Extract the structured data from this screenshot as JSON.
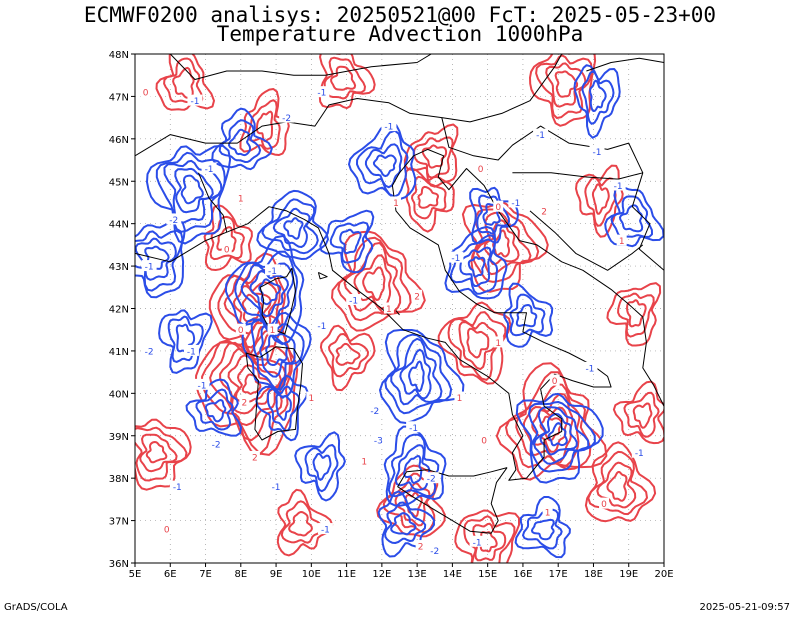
{
  "title_line1": "ECMWF0200 analisys: 20250521@00 FcT: 2025-05-23+00",
  "title_line2": "Temperature Advection 1000hPa",
  "footer_left": "GrADS/COLA",
  "footer_right": "2025-05-21-09:57",
  "colors": {
    "positive": "#e8434a",
    "negative": "#2b4de8",
    "coast": "#000000",
    "grid": "#9a9a9a"
  },
  "map": {
    "lon_range": [
      5,
      20
    ],
    "lat_range": [
      36,
      48
    ],
    "lon_ticks": [
      "5E",
      "6E",
      "7E",
      "8E",
      "9E",
      "10E",
      "11E",
      "12E",
      "13E",
      "14E",
      "15E",
      "16E",
      "17E",
      "18E",
      "19E",
      "20E"
    ],
    "lat_ticks": [
      "36N",
      "37N",
      "38N",
      "39N",
      "40N",
      "41N",
      "42N",
      "43N",
      "44N",
      "45N",
      "46N",
      "47N",
      "48N"
    ],
    "grid": "dotted"
  },
  "contours": {
    "positive": [
      {
        "lon": 8.3,
        "lat": 40.2,
        "n": 7
      },
      {
        "lon": 8.3,
        "lat": 42.0,
        "n": 5
      },
      {
        "lon": 16.8,
        "lat": 39.2,
        "n": 6
      },
      {
        "lon": 11.8,
        "lat": 42.6,
        "n": 5
      },
      {
        "lon": 15.4,
        "lat": 43.5,
        "n": 5
      },
      {
        "lon": 5.6,
        "lat": 38.6,
        "n": 4
      },
      {
        "lon": 17.2,
        "lat": 47.3,
        "n": 4
      },
      {
        "lon": 13.5,
        "lat": 45.6,
        "n": 3
      },
      {
        "lon": 8.7,
        "lat": 46.3,
        "n": 3
      },
      {
        "lon": 7.6,
        "lat": 43.6,
        "n": 3
      },
      {
        "lon": 13.3,
        "lat": 44.6,
        "n": 3
      },
      {
        "lon": 14.7,
        "lat": 41.2,
        "n": 4
      },
      {
        "lon": 12.9,
        "lat": 37.4,
        "n": 4
      },
      {
        "lon": 18.7,
        "lat": 37.8,
        "n": 4
      },
      {
        "lon": 9.7,
        "lat": 36.9,
        "n": 3
      },
      {
        "lon": 11.0,
        "lat": 40.9,
        "n": 3
      },
      {
        "lon": 18.2,
        "lat": 44.6,
        "n": 3
      },
      {
        "lon": 19.4,
        "lat": 39.5,
        "n": 3
      },
      {
        "lon": 6.4,
        "lat": 47.3,
        "n": 3
      },
      {
        "lon": 10.9,
        "lat": 47.4,
        "n": 3
      },
      {
        "lon": 15.0,
        "lat": 36.5,
        "n": 4
      },
      {
        "lon": 19.2,
        "lat": 41.9,
        "n": 3
      }
    ],
    "negative": [
      {
        "lon": 8.8,
        "lat": 42.4,
        "n": 5
      },
      {
        "lon": 12.1,
        "lat": 45.4,
        "n": 4
      },
      {
        "lon": 13.0,
        "lat": 40.4,
        "n": 5
      },
      {
        "lon": 17.0,
        "lat": 39.0,
        "n": 5
      },
      {
        "lon": 6.6,
        "lat": 44.8,
        "n": 5
      },
      {
        "lon": 5.6,
        "lat": 43.2,
        "n": 4
      },
      {
        "lon": 14.7,
        "lat": 43.0,
        "n": 4
      },
      {
        "lon": 12.9,
        "lat": 38.2,
        "n": 4
      },
      {
        "lon": 16.1,
        "lat": 41.8,
        "n": 3
      },
      {
        "lon": 9.0,
        "lat": 41.0,
        "n": 4
      },
      {
        "lon": 9.2,
        "lat": 39.7,
        "n": 3
      },
      {
        "lon": 9.5,
        "lat": 43.9,
        "n": 4
      },
      {
        "lon": 8.0,
        "lat": 45.9,
        "n": 3
      },
      {
        "lon": 12.6,
        "lat": 36.9,
        "n": 3
      },
      {
        "lon": 18.1,
        "lat": 47.0,
        "n": 3
      },
      {
        "lon": 10.3,
        "lat": 38.3,
        "n": 3
      },
      {
        "lon": 7.3,
        "lat": 39.6,
        "n": 3
      },
      {
        "lon": 19.1,
        "lat": 44.1,
        "n": 3
      },
      {
        "lon": 15.1,
        "lat": 44.2,
        "n": 3
      },
      {
        "lon": 6.4,
        "lat": 41.3,
        "n": 3
      },
      {
        "lon": 11.1,
        "lat": 43.6,
        "n": 3
      },
      {
        "lon": 16.6,
        "lat": 36.8,
        "n": 3
      }
    ]
  },
  "contour_labels": [
    {
      "text": "0",
      "lon": 5.3,
      "lat": 47.1
    },
    {
      "text": "-1",
      "lon": 6.7,
      "lat": 46.9
    },
    {
      "text": "-1",
      "lon": 10.3,
      "lat": 47.1
    },
    {
      "text": "-1",
      "lon": 7.1,
      "lat": 45.3
    },
    {
      "text": "1",
      "lon": 8.0,
      "lat": 44.6
    },
    {
      "text": "-2",
      "lon": 9.3,
      "lat": 46.5
    },
    {
      "text": "-1",
      "lon": 12.2,
      "lat": 46.3
    },
    {
      "text": "0",
      "lon": 14.8,
      "lat": 45.3
    },
    {
      "text": "-1",
      "lon": 16.5,
      "lat": 46.1
    },
    {
      "text": "-1",
      "lon": 18.1,
      "lat": 45.7
    },
    {
      "text": "-1",
      "lon": 18.7,
      "lat": 44.9
    },
    {
      "text": "2",
      "lon": 16.6,
      "lat": 44.3
    },
    {
      "text": "-1",
      "lon": 15.8,
      "lat": 44.5
    },
    {
      "text": "0",
      "lon": 15.3,
      "lat": 44.4
    },
    {
      "text": "1",
      "lon": 12.4,
      "lat": 44.5
    },
    {
      "text": "-1",
      "lon": 14.1,
      "lat": 43.2
    },
    {
      "text": "2",
      "lon": 13.0,
      "lat": 42.3
    },
    {
      "text": "1",
      "lon": 18.8,
      "lat": 43.6
    },
    {
      "text": "0",
      "lon": 7.6,
      "lat": 43.4
    },
    {
      "text": "-2",
      "lon": 6.1,
      "lat": 44.1
    },
    {
      "text": "-1",
      "lon": 5.4,
      "lat": 43.0
    },
    {
      "text": "-1",
      "lon": 8.9,
      "lat": 42.9
    },
    {
      "text": "0",
      "lon": 8.0,
      "lat": 41.5
    },
    {
      "text": "1",
      "lon": 8.9,
      "lat": 41.5
    },
    {
      "text": "-1",
      "lon": 10.3,
      "lat": 41.6
    },
    {
      "text": "-1",
      "lon": 11.2,
      "lat": 42.2
    },
    {
      "text": "1",
      "lon": 12.2,
      "lat": 42.0
    },
    {
      "text": "-1",
      "lon": 6.9,
      "lat": 40.2
    },
    {
      "text": "-2",
      "lon": 5.4,
      "lat": 41.0
    },
    {
      "text": "-1",
      "lon": 6.6,
      "lat": 41.0
    },
    {
      "text": "2",
      "lon": 8.1,
      "lat": 39.8
    },
    {
      "text": "1",
      "lon": 10.0,
      "lat": 39.9
    },
    {
      "text": "-2",
      "lon": 11.8,
      "lat": 39.6
    },
    {
      "text": "-1",
      "lon": 12.9,
      "lat": 39.2
    },
    {
      "text": "-3",
      "lon": 11.9,
      "lat": 38.9
    },
    {
      "text": "-2",
      "lon": 13.4,
      "lat": 38.0
    },
    {
      "text": "-2",
      "lon": 7.3,
      "lat": 38.8
    },
    {
      "text": "2",
      "lon": 8.4,
      "lat": 38.5
    },
    {
      "text": "1",
      "lon": 11.5,
      "lat": 38.4
    },
    {
      "text": "0",
      "lon": 16.9,
      "lat": 40.3
    },
    {
      "text": "-1",
      "lon": 17.9,
      "lat": 40.6
    },
    {
      "text": "1",
      "lon": 15.3,
      "lat": 41.2
    },
    {
      "text": "1",
      "lon": 16.7,
      "lat": 37.2
    },
    {
      "text": "0",
      "lon": 18.3,
      "lat": 37.4
    },
    {
      "text": "-1",
      "lon": 9.0,
      "lat": 37.8
    },
    {
      "text": "-1",
      "lon": 6.2,
      "lat": 37.8
    },
    {
      "text": "0",
      "lon": 5.9,
      "lat": 36.8
    },
    {
      "text": "-1",
      "lon": 10.4,
      "lat": 36.8
    },
    {
      "text": "2",
      "lon": 13.1,
      "lat": 36.4
    },
    {
      "text": "-2",
      "lon": 13.5,
      "lat": 36.3
    },
    {
      "text": "-1",
      "lon": 14.7,
      "lat": 36.5
    },
    {
      "text": "1",
      "lon": 14.2,
      "lat": 39.9
    },
    {
      "text": "0",
      "lon": 14.9,
      "lat": 38.9
    },
    {
      "text": "-1",
      "lon": 19.3,
      "lat": 38.6
    }
  ]
}
